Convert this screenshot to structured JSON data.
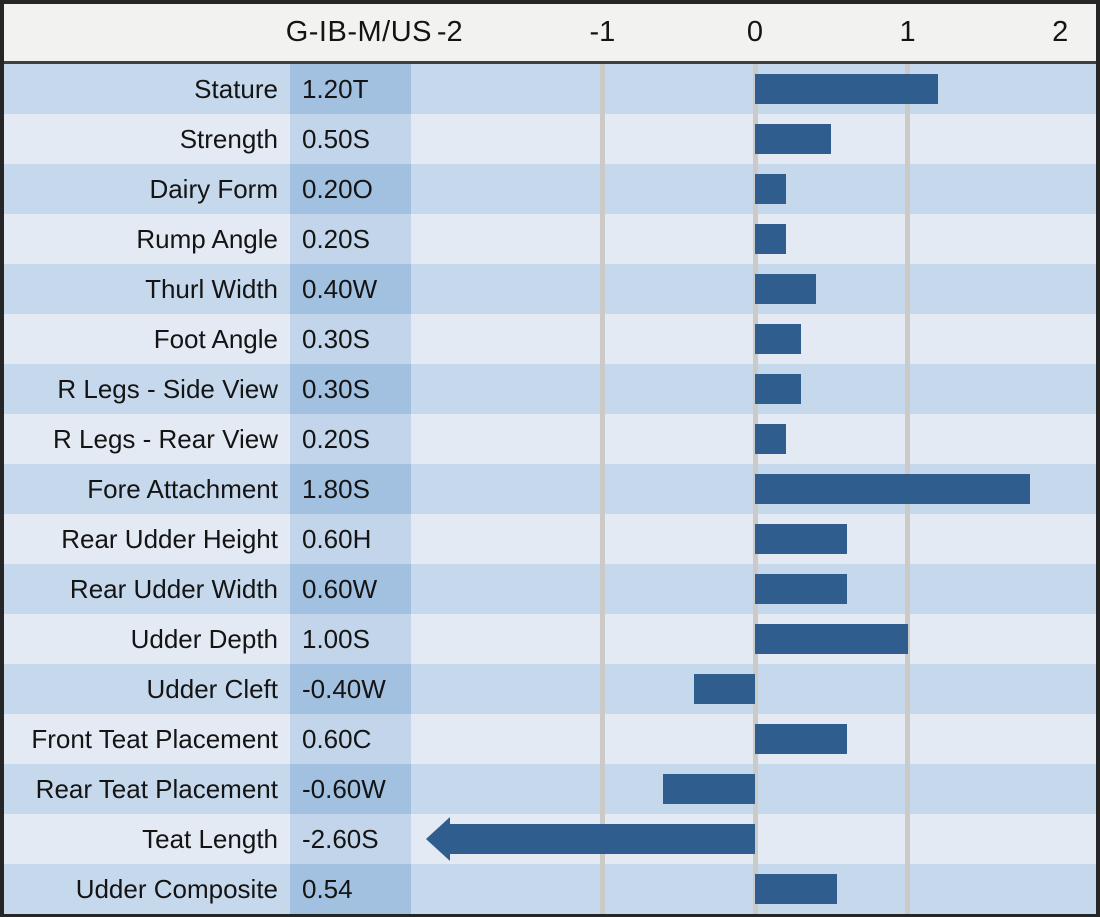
{
  "header": {
    "title": "G-IB-M/US"
  },
  "colors": {
    "row_odd_bg": "#C6D9EC",
    "row_even_bg": "#E3EAF4",
    "value_cell_odd_bg": "#A2C0E0",
    "value_cell_even_bg": "#C3D5EA",
    "bar": "#2F5D8E",
    "gridline": "#CBCAC7",
    "header_bg": "#F2F2F1",
    "header_divider": "#3F3F3F",
    "outer_border": "#262626",
    "text": "#141414"
  },
  "chart_data": {
    "type": "bar",
    "orientation": "horizontal",
    "title": "G-IB-M/US",
    "xlabel": "",
    "ylabel": "",
    "xlim": [
      -2.25,
      2.25
    ],
    "ticks": [
      {
        "value": -2,
        "label": "-2"
      },
      {
        "value": -1,
        "label": "-1"
      },
      {
        "value": 0,
        "label": "0"
      },
      {
        "value": 1,
        "label": "1"
      },
      {
        "value": 2,
        "label": "2"
      }
    ],
    "gridline_values": [
      -1,
      0,
      1
    ],
    "legend": null,
    "rows": [
      {
        "trait": "Stature",
        "value_label": "1.20T",
        "value": 1.2
      },
      {
        "trait": "Strength",
        "value_label": "0.50S",
        "value": 0.5
      },
      {
        "trait": "Dairy Form",
        "value_label": "0.20O",
        "value": 0.2
      },
      {
        "trait": "Rump Angle",
        "value_label": "0.20S",
        "value": 0.2
      },
      {
        "trait": "Thurl Width",
        "value_label": "0.40W",
        "value": 0.4
      },
      {
        "trait": "Foot Angle",
        "value_label": "0.30S",
        "value": 0.3
      },
      {
        "trait": "R Legs - Side View",
        "value_label": "0.30S",
        "value": 0.3
      },
      {
        "trait": "R Legs - Rear View",
        "value_label": "0.20S",
        "value": 0.2
      },
      {
        "trait": "Fore Attachment",
        "value_label": "1.80S",
        "value": 1.8
      },
      {
        "trait": "Rear Udder Height",
        "value_label": "0.60H",
        "value": 0.6
      },
      {
        "trait": "Rear Udder Width",
        "value_label": "0.60W",
        "value": 0.6
      },
      {
        "trait": "Udder Depth",
        "value_label": "1.00S",
        "value": 1.0
      },
      {
        "trait": "Udder Cleft",
        "value_label": "-0.40W",
        "value": -0.4
      },
      {
        "trait": "Front Teat Placement",
        "value_label": "0.60C",
        "value": 0.6
      },
      {
        "trait": "Rear Teat Placement",
        "value_label": "-0.60W",
        "value": -0.6
      },
      {
        "trait": "Teat Length",
        "value_label": "-2.60S",
        "value": -2.6,
        "clipped_at": -2.0,
        "clip_arrow": true
      },
      {
        "trait": "Udder Composite",
        "value_label": "0.54",
        "value": 0.54
      }
    ]
  }
}
